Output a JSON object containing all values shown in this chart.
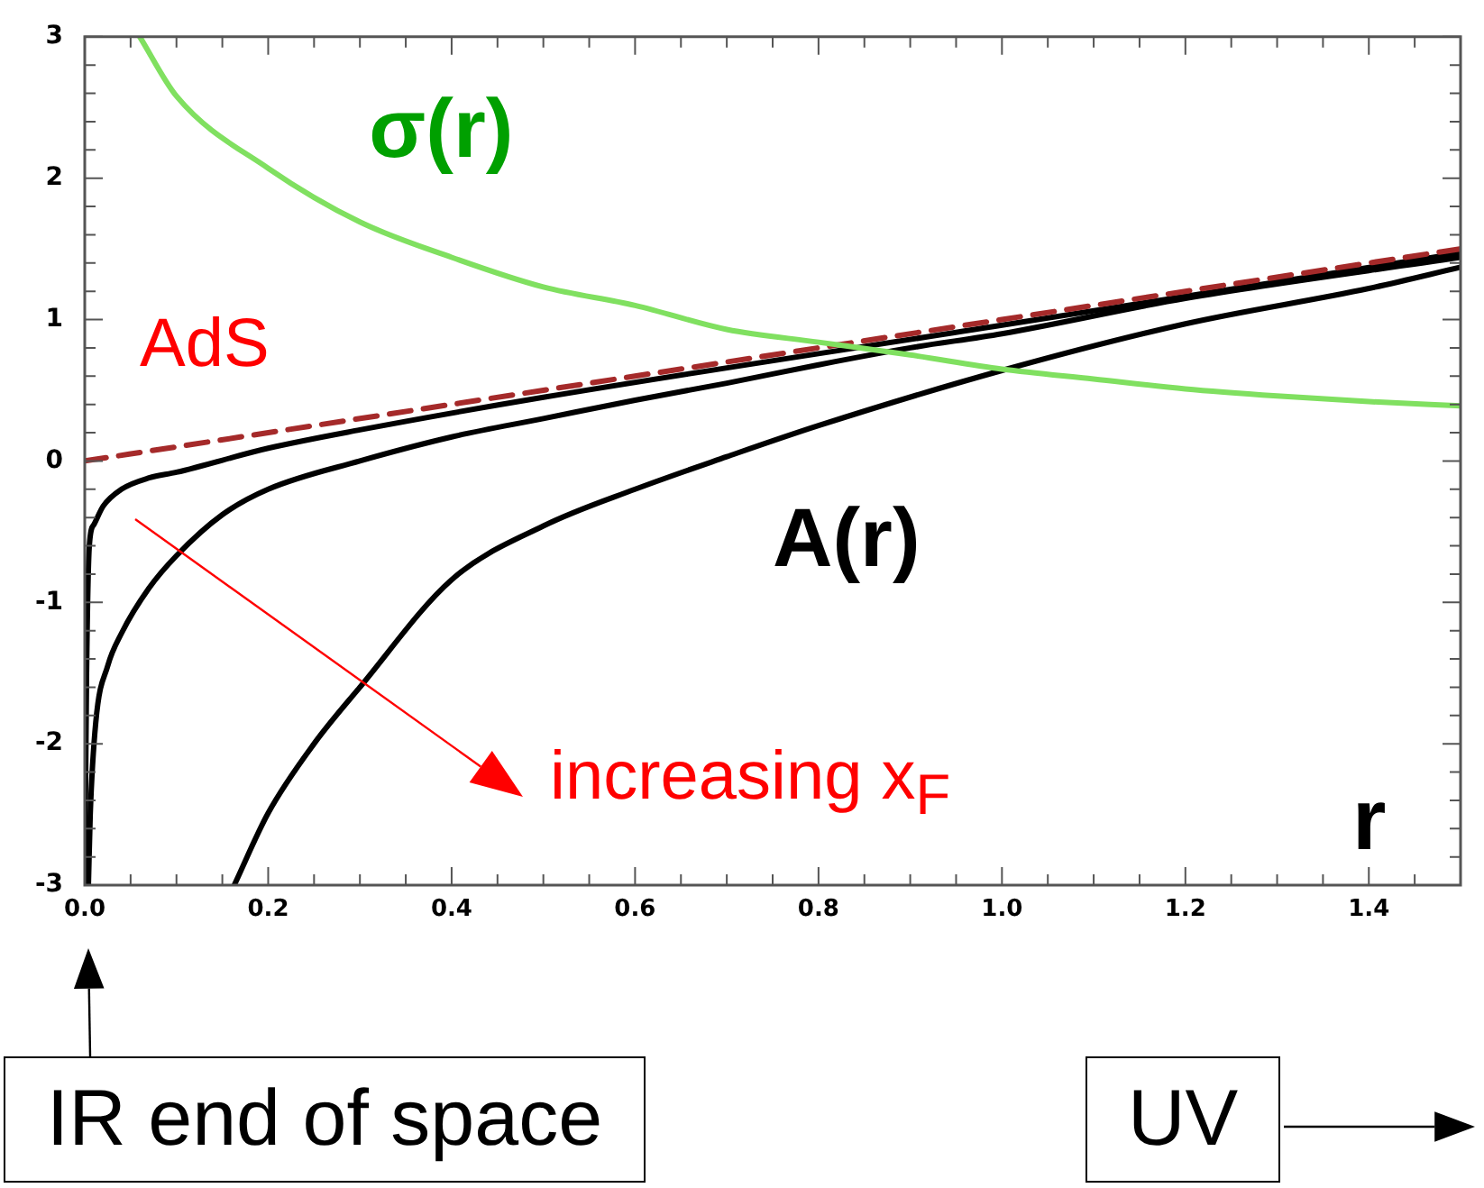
{
  "chart_data": {
    "type": "line",
    "xlabel": "r",
    "xlim": [
      0,
      1.5
    ],
    "xticks": [
      {
        "value": 0,
        "label": "0.0"
      },
      {
        "value": 0.05,
        "label": null
      },
      {
        "value": 0.1,
        "label": null
      },
      {
        "value": 0.15,
        "label": null
      },
      {
        "value": 0.2,
        "label": "0.2"
      },
      {
        "value": 0.25,
        "label": null
      },
      {
        "value": 0.3,
        "label": null
      },
      {
        "value": 0.35,
        "label": null
      },
      {
        "value": 0.4,
        "label": "0.4"
      },
      {
        "value": 0.45,
        "label": null
      },
      {
        "value": 0.5,
        "label": null
      },
      {
        "value": 0.55,
        "label": null
      },
      {
        "value": 0.6,
        "label": "0.6"
      },
      {
        "value": 0.65,
        "label": null
      },
      {
        "value": 0.7,
        "label": null
      },
      {
        "value": 0.75,
        "label": null
      },
      {
        "value": 0.8,
        "label": "0.8"
      },
      {
        "value": 0.85,
        "label": null
      },
      {
        "value": 0.9,
        "label": null
      },
      {
        "value": 0.95,
        "label": null
      },
      {
        "value": 1,
        "label": "1.0"
      },
      {
        "value": 1.05,
        "label": null
      },
      {
        "value": 1.1,
        "label": null
      },
      {
        "value": 1.15,
        "label": null
      },
      {
        "value": 1.2,
        "label": "1.2"
      },
      {
        "value": 1.25,
        "label": null
      },
      {
        "value": 1.3,
        "label": null
      },
      {
        "value": 1.35,
        "label": null
      },
      {
        "value": 1.4,
        "label": "1.4"
      },
      {
        "value": 1.45,
        "label": null
      }
    ],
    "ylim": [
      -3,
      3
    ],
    "yticks": [
      -3,
      {
        "value": -2.8,
        "label": null
      },
      {
        "value": -2.6,
        "label": null
      },
      {
        "value": -2.4,
        "label": null
      },
      {
        "value": -2.2,
        "label": null
      },
      -2,
      {
        "value": -1.8,
        "label": null
      },
      {
        "value": -1.6,
        "label": null
      },
      {
        "value": -1.4,
        "label": null
      },
      {
        "value": -1.2,
        "label": null
      },
      -1,
      {
        "value": -0.8,
        "label": null
      },
      {
        "value": -0.6,
        "label": null
      },
      {
        "value": -0.4,
        "label": null
      },
      {
        "value": -0.2,
        "label": null
      },
      0,
      {
        "value": 0.2,
        "label": null
      },
      {
        "value": 0.4,
        "label": null
      },
      {
        "value": 0.6,
        "label": null
      },
      {
        "value": 0.8,
        "label": null
      },
      1,
      {
        "value": 1.2,
        "label": null
      },
      {
        "value": 1.4,
        "label": null
      },
      {
        "value": 1.6,
        "label": null
      },
      {
        "value": 1.8,
        "label": null
      },
      2,
      {
        "value": 2.2,
        "label": null
      },
      {
        "value": 2.4,
        "label": null
      },
      {
        "value": 2.6,
        "label": null
      },
      {
        "value": 2.8,
        "label": null
      },
      3
    ],
    "grid": false,
    "legend": false,
    "marker": "none",
    "series": [
      {
        "name": "σ(r)",
        "color": "#80e060",
        "x": [
          0.06,
          0.1,
          0.2,
          0.3,
          0.4,
          0.5,
          0.6,
          0.7,
          0.8,
          0.9,
          1.0,
          1.1,
          1.2,
          1.3,
          1.4,
          1.5
        ],
        "values": [
          3,
          2.58,
          2.07,
          1.69,
          1.44,
          1.23,
          1.1,
          0.93,
          0.84,
          0.75,
          0.65,
          0.58,
          0.51,
          0.46,
          0.42,
          0.39
        ]
      },
      {
        "name": "AdS",
        "color": "#a52a2a",
        "line_style": "dashed",
        "x": [
          0,
          0.5,
          1.0,
          1.5
        ],
        "values": [
          0,
          0.5,
          1.0,
          1.5
        ]
      },
      {
        "name": "A(r)",
        "color": "#000000",
        "x": [
          0,
          0.002,
          0.005,
          0.01,
          0.02,
          0.04,
          0.07,
          0.1,
          0.2,
          0.3,
          0.5,
          1.0,
          1.5
        ],
        "values": [
          -3,
          -1.5,
          -0.6,
          -0.45,
          -0.32,
          -0.2,
          -0.12,
          -0.08,
          0.09,
          0.22,
          0.45,
          0.96,
          1.47
        ]
      },
      {
        "color": "#000000",
        "x": [
          0.004,
          0.006,
          0.012,
          0.025,
          0.04,
          0.07,
          0.1,
          0.15,
          0.2,
          0.3,
          0.4,
          0.5,
          0.6,
          0.7,
          0.8,
          0.9,
          1.0,
          1.2,
          1.5
        ],
        "values": [
          -3,
          -2.5,
          -1.85,
          -1.45,
          -1.22,
          -0.9,
          -0.67,
          -0.38,
          -0.2,
          0,
          0.17,
          0.3,
          0.43,
          0.55,
          0.68,
          0.8,
          0.9,
          1.15,
          1.44
        ]
      },
      {
        "color": "#000000",
        "x": [
          0.163,
          0.2,
          0.25,
          0.3,
          0.4,
          0.5,
          0.6,
          0.7,
          0.8,
          1.0,
          1.2,
          1.4,
          1.5
        ],
        "values": [
          -3,
          -2.49,
          -2.0,
          -1.6,
          -0.84,
          -0.46,
          -0.2,
          0.03,
          0.25,
          0.64,
          0.97,
          1.22,
          1.37
        ]
      }
    ],
    "annotations": [
      "increasing x$_{F}$",
      "IR end of space",
      "UV"
    ]
  }
}
